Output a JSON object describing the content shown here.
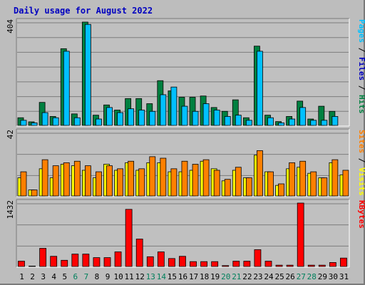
{
  "chart_data": {
    "type": "bar",
    "title": "Daily usage for August 2022",
    "categories": [
      "1",
      "2",
      "3",
      "4",
      "5",
      "6",
      "7",
      "8",
      "9",
      "10",
      "11",
      "12",
      "13",
      "14",
      "15",
      "16",
      "17",
      "18",
      "19",
      "20",
      "21",
      "22",
      "23",
      "24",
      "25",
      "26",
      "27",
      "28",
      "29",
      "30",
      "31"
    ],
    "weekend_days": [
      "6",
      "7",
      "13",
      "14",
      "20",
      "21",
      "27",
      "28"
    ],
    "colors": {
      "hits": "#008040",
      "files": "#00c0ff",
      "sites": "#ff8000",
      "visits": "#ffff00",
      "kbytes": "#ff0000",
      "title": "#0000c0",
      "weekday_label": "#000000",
      "weekend_label": "#00805c"
    },
    "panels": [
      {
        "name": "hits-files",
        "ymax_label": "404",
        "ymax": 404,
        "legend": [
          {
            "text": "Pages",
            "color": "#00c0ff"
          },
          {
            "text": " / ",
            "color": "#000000"
          },
          {
            "text": "Files",
            "color": "#0000c0"
          },
          {
            "text": " / ",
            "color": "#000000"
          },
          {
            "text": "Hits",
            "color": "#008040"
          }
        ],
        "series": [
          {
            "name": "Hits",
            "color": "#008040",
            "values": [
              30,
              14,
              90,
              35,
              300,
              45,
              404,
              40,
              80,
              60,
              105,
              105,
              85,
              175,
              135,
              110,
              110,
              115,
              70,
              55,
              100,
              30,
              310,
              40,
              15,
              35,
              95,
              25,
              75,
              55,
              0
            ]
          },
          {
            "name": "Files",
            "color": "#00c0ff",
            "values": [
              20,
              10,
              50,
              30,
              290,
              30,
              395,
              25,
              70,
              50,
              65,
              60,
              55,
              120,
              150,
              75,
              55,
              85,
              60,
              35,
              40,
              20,
              290,
              30,
              10,
              25,
              70,
              20,
              20,
              35,
              0
            ]
          }
        ]
      },
      {
        "name": "sites-visits",
        "ymax_label": "42",
        "ymax": 42,
        "legend": [
          {
            "text": "Sites",
            "color": "#ff8000"
          },
          {
            "text": " / ",
            "color": "#000000"
          },
          {
            "text": "Visits",
            "color": "#ffff00"
          }
        ],
        "series": [
          {
            "name": "Visits",
            "color": "#ffff00",
            "values": [
              12,
              4,
              18,
              12,
              21,
              20,
              17,
              12,
              21,
              17,
              22,
              17,
              22,
              22,
              16,
              16,
              17,
              23,
              18,
              10,
              17,
              12,
              27,
              16,
              7,
              18,
              19,
              15,
              12,
              22,
              14
            ]
          },
          {
            "name": "Sites",
            "color": "#ff8000",
            "values": [
              16,
              4,
              24,
              20,
              22,
              23,
              20,
              16,
              20,
              18,
              23,
              18,
              26,
              25,
              18,
              23,
              21,
              24,
              17,
              11,
              19,
              12,
              30,
              16,
              8,
              22,
              23,
              16,
              12,
              24,
              17
            ]
          }
        ]
      },
      {
        "name": "kbytes",
        "ymax_label": "1432",
        "ymax": 1432,
        "legend": [
          {
            "text": "KBytes",
            "color": "#ff0000"
          }
        ],
        "series": [
          {
            "name": "KBytes",
            "color": "#ff0000",
            "values": [
              120,
              10,
              410,
              230,
              140,
              280,
              280,
              200,
              200,
              330,
              1290,
              620,
              220,
              330,
              180,
              230,
              110,
              110,
              110,
              20,
              120,
              120,
              380,
              120,
              30,
              30,
              1432,
              30,
              30,
              90,
              190
            ]
          }
        ]
      }
    ]
  }
}
